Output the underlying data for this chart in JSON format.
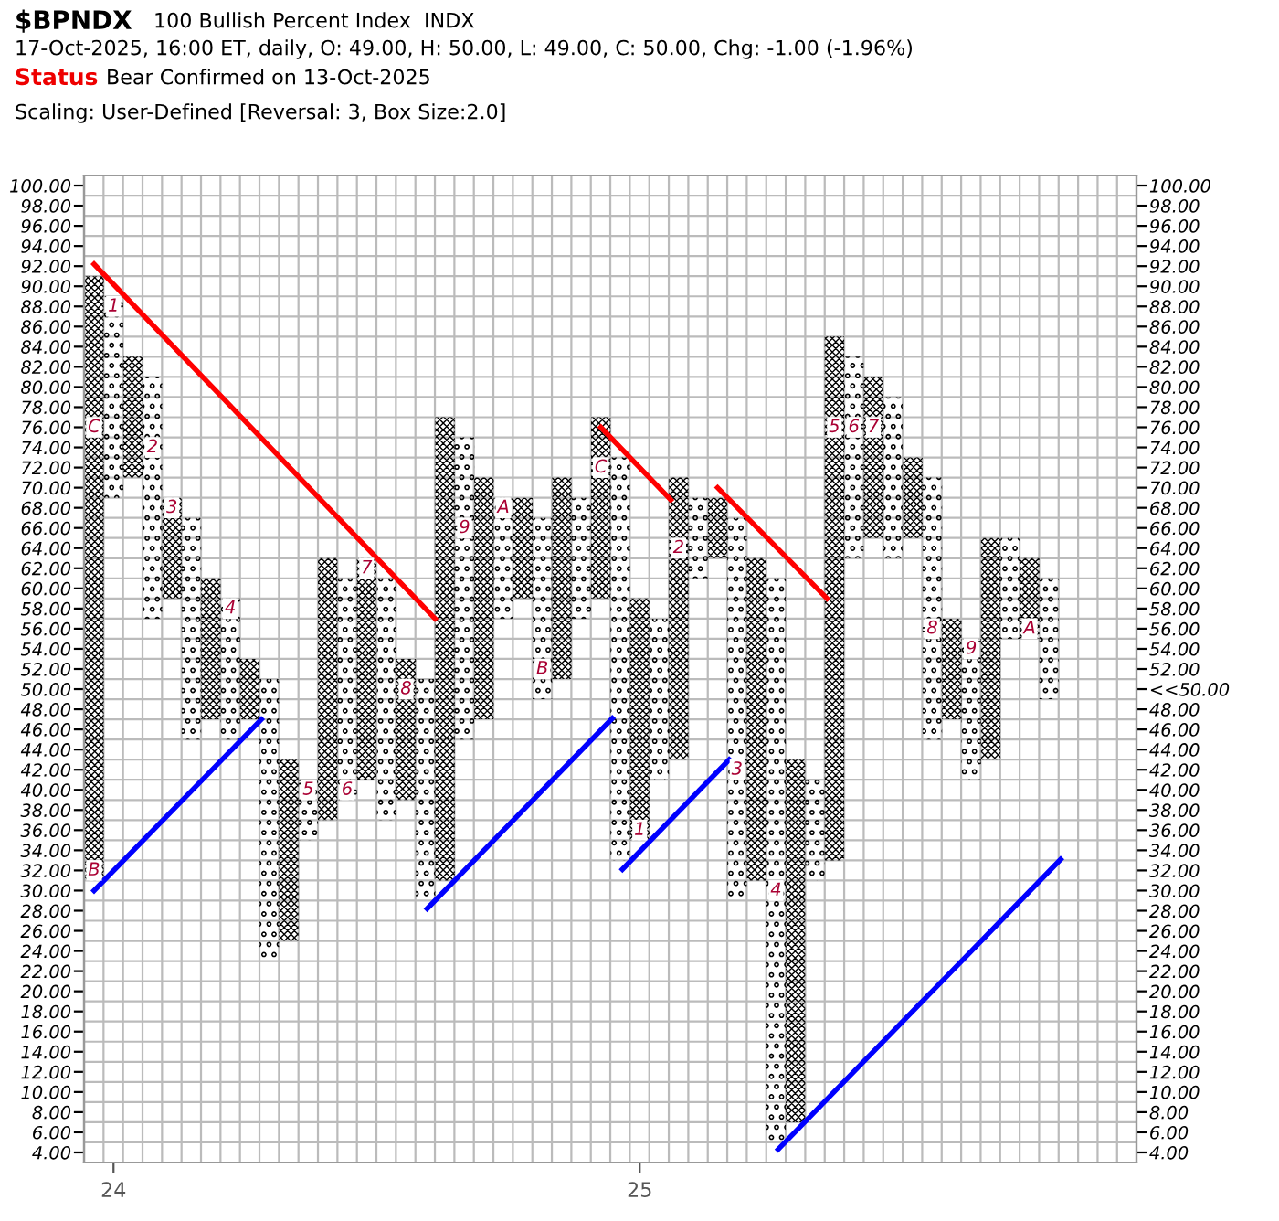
{
  "chart_data": {
    "type": "bar",
    "title": "$BPNDX",
    "subtitle": "100 Bullish Percent Index  INDX",
    "annotations": [
      "17-Oct-2025, 16:00 ET, daily, O: 49.00, H: 50.00, L: 49.00, C: 50.00, Chg: -1.00 (-1.96%)",
      "Status",
      "Bear Confirmed on 13-Oct-2025",
      "Scaling: User-Defined [Reversal: 3, Box Size:2.0]",
      {
        "text": "B",
        "x": 23.963,
        "y": 32
      },
      {
        "text": "C",
        "x": 23.963,
        "y": 76
      },
      {
        "text": "1",
        "x": 24.0,
        "y": 88
      },
      {
        "text": "2",
        "x": 24.074,
        "y": 74
      },
      {
        "text": "3",
        "x": 24.111,
        "y": 68
      },
      {
        "text": "4",
        "x": 24.222,
        "y": 58
      },
      {
        "text": "5",
        "x": 24.37,
        "y": 40
      },
      {
        "text": "6",
        "x": 24.444,
        "y": 40
      },
      {
        "text": "7",
        "x": 24.481,
        "y": 62
      },
      {
        "text": "8",
        "x": 24.556,
        "y": 50
      },
      {
        "text": "9",
        "x": 24.667,
        "y": 66
      },
      {
        "text": "A",
        "x": 24.741,
        "y": 68
      },
      {
        "text": "B",
        "x": 24.815,
        "y": 52
      },
      {
        "text": "C",
        "x": 24.926,
        "y": 72
      },
      {
        "text": "1",
        "x": 25.0,
        "y": 36
      },
      {
        "text": "2",
        "x": 25.074,
        "y": 64
      },
      {
        "text": "3",
        "x": 25.185,
        "y": 42
      },
      {
        "text": "4",
        "x": 25.259,
        "y": 30
      },
      {
        "text": "5",
        "x": 25.37,
        "y": 76
      },
      {
        "text": "6",
        "x": 25.407,
        "y": 76
      },
      {
        "text": "7",
        "x": 25.444,
        "y": 76
      },
      {
        "text": "8",
        "x": 25.556,
        "y": 56
      },
      {
        "text": "9",
        "x": 25.63,
        "y": 54
      },
      {
        "text": "A",
        "x": 25.741,
        "y": 56
      }
    ],
    "x": [
      23.963,
      24.0,
      24.037,
      24.074,
      24.111,
      24.148,
      24.185,
      24.222,
      24.259,
      24.296,
      24.333,
      24.37,
      24.407,
      24.444,
      24.481,
      24.519,
      24.556,
      24.593,
      24.63,
      24.667,
      24.704,
      24.741,
      24.778,
      24.815,
      24.852,
      24.889,
      24.926,
      24.963,
      25.0,
      25.037,
      25.074,
      25.111,
      25.148,
      25.185,
      25.222,
      25.259,
      25.296,
      25.333,
      25.37,
      25.407,
      25.444,
      25.481,
      25.519,
      25.556,
      25.593,
      25.63,
      25.667,
      25.704,
      25.741,
      25.778
    ],
    "series": [
      {
        "color": "#000000",
        "base": [
          31,
          89,
          71,
          81,
          59,
          67,
          47,
          59,
          47,
          51,
          25,
          41,
          37,
          61,
          41,
          61,
          39,
          51,
          31,
          75,
          47,
          69,
          59,
          67,
          51,
          69,
          59,
          73,
          35,
          57,
          43,
          69,
          63,
          67,
          31,
          61,
          7,
          41,
          33,
          83,
          65,
          79,
          65,
          71,
          47,
          55,
          43,
          65,
          55,
          61
        ],
        "values": [
          60,
          -20,
          12,
          -24,
          10,
          -22,
          14,
          -14,
          6,
          -28,
          18,
          -6,
          26,
          -22,
          22,
          -24,
          14,
          -22,
          46,
          -30,
          24,
          -12,
          10,
          -18,
          20,
          -12,
          18,
          -40,
          24,
          -16,
          28,
          -8,
          6,
          -38,
          32,
          -56,
          36,
          -10,
          52,
          -20,
          16,
          -16,
          8,
          -26,
          10,
          -14,
          22,
          -10,
          8,
          -12
        ]
      },
      {
        "type": "line",
        "color": "#ff0000",
        "x": [
          23.963,
          24.611
        ],
        "values": [
          92.2,
          57
        ]
      },
      {
        "type": "line",
        "color": "#ff0000",
        "x": [
          24.926,
          25.059
        ],
        "values": [
          76,
          68.8
        ]
      },
      {
        "type": "line",
        "color": "#ff0000",
        "x": [
          25.148,
          25.356
        ],
        "values": [
          70,
          59
        ]
      },
      {
        "type": "line",
        "color": "#0000ff",
        "x": [
          23.963,
          24.281
        ],
        "values": [
          30,
          47
        ]
      },
      {
        "type": "line",
        "color": "#0000ff",
        "x": [
          24.596,
          24.948
        ],
        "values": [
          28.2,
          47.1
        ]
      },
      {
        "type": "line",
        "color": "#0000ff",
        "x": [
          24.967,
          25.17
        ],
        "values": [
          32.1,
          43
        ]
      },
      {
        "type": "line",
        "color": "#0000ff",
        "x": [
          25.263,
          25.8
        ],
        "values": [
          4.3,
          33.1
        ]
      }
    ],
    "xlim": [
      23.944,
      25.944
    ],
    "xticks": [
      24,
      25
    ],
    "ylim": [
      3,
      101
    ],
    "yticks": [
      {
        "value": 4,
        "label": "4.00"
      },
      {
        "value": 6,
        "label": "6.00"
      },
      {
        "value": 8,
        "label": "8.00"
      },
      {
        "value": 10,
        "label": "10.00"
      },
      {
        "value": 12,
        "label": "12.00"
      },
      {
        "value": 14,
        "label": "14.00"
      },
      {
        "value": 16,
        "label": "16.00"
      },
      {
        "value": 18,
        "label": "18.00"
      },
      {
        "value": 20,
        "label": "20.00"
      },
      {
        "value": 22,
        "label": "22.00"
      },
      {
        "value": 24,
        "label": "24.00"
      },
      {
        "value": 26,
        "label": "26.00"
      },
      {
        "value": 28,
        "label": "28.00"
      },
      {
        "value": 30,
        "label": "30.00"
      },
      {
        "value": 32,
        "label": "32.00"
      },
      {
        "value": 34,
        "label": "34.00"
      },
      {
        "value": 36,
        "label": "36.00"
      },
      {
        "value": 38,
        "label": "38.00"
      },
      {
        "value": 40,
        "label": "40.00"
      },
      {
        "value": 42,
        "label": "42.00"
      },
      {
        "value": 44,
        "label": "44.00"
      },
      {
        "value": 46,
        "label": "46.00"
      },
      {
        "value": 48,
        "label": "48.00"
      },
      {
        "value": 50,
        "label": "50.00"
      },
      {
        "value": 52,
        "label": "52.00"
      },
      {
        "value": 54,
        "label": "54.00"
      },
      {
        "value": 56,
        "label": "56.00"
      },
      {
        "value": 58,
        "label": "58.00"
      },
      {
        "value": 60,
        "label": "60.00"
      },
      {
        "value": 62,
        "label": "62.00"
      },
      {
        "value": 64,
        "label": "64.00"
      },
      {
        "value": 66,
        "label": "66.00"
      },
      {
        "value": 68,
        "label": "68.00"
      },
      {
        "value": 70,
        "label": "70.00"
      },
      {
        "value": 72,
        "label": "72.00"
      },
      {
        "value": 74,
        "label": "74.00"
      },
      {
        "value": 76,
        "label": "76.00"
      },
      {
        "value": 78,
        "label": "78.00"
      },
      {
        "value": 80,
        "label": "80.00"
      },
      {
        "value": 82,
        "label": "82.00"
      },
      {
        "value": 84,
        "label": "84.00"
      },
      {
        "value": 86,
        "label": "86.00"
      },
      {
        "value": 88,
        "label": "88.00"
      },
      {
        "value": 90,
        "label": "90.00"
      },
      {
        "value": 92,
        "label": "92.00"
      },
      {
        "value": 94,
        "label": "94.00"
      },
      {
        "value": 96,
        "label": "96.00"
      },
      {
        "value": 98,
        "label": "98.00"
      },
      {
        "value": 100,
        "label": "100.00"
      }
    ],
    "y2lim": [
      3,
      101
    ],
    "y2ticks": [
      {
        "value": 4,
        "label": "4.00"
      },
      {
        "value": 6,
        "label": "6.00"
      },
      {
        "value": 8,
        "label": "8.00"
      },
      {
        "value": 10,
        "label": "10.00"
      },
      {
        "value": 12,
        "label": "12.00"
      },
      {
        "value": 14,
        "label": "14.00"
      },
      {
        "value": 16,
        "label": "16.00"
      },
      {
        "value": 18,
        "label": "18.00"
      },
      {
        "value": 20,
        "label": "20.00"
      },
      {
        "value": 22,
        "label": "22.00"
      },
      {
        "value": 24,
        "label": "24.00"
      },
      {
        "value": 26,
        "label": "26.00"
      },
      {
        "value": 28,
        "label": "28.00"
      },
      {
        "value": 30,
        "label": "30.00"
      },
      {
        "value": 32,
        "label": "32.00"
      },
      {
        "value": 34,
        "label": "34.00"
      },
      {
        "value": 36,
        "label": "36.00"
      },
      {
        "value": 38,
        "label": "38.00"
      },
      {
        "value": 40,
        "label": "40.00"
      },
      {
        "value": 42,
        "label": "42.00"
      },
      {
        "value": 44,
        "label": "44.00"
      },
      {
        "value": 46,
        "label": "46.00"
      },
      {
        "value": 48,
        "label": "48.00"
      },
      {
        "value": 50,
        "label": "<<50.00"
      },
      {
        "value": 52,
        "label": "52.00"
      },
      {
        "value": 54,
        "label": "54.00"
      },
      {
        "value": 56,
        "label": "56.00"
      },
      {
        "value": 58,
        "label": "58.00"
      },
      {
        "value": 60,
        "label": "60.00"
      },
      {
        "value": 62,
        "label": "62.00"
      },
      {
        "value": 64,
        "label": "64.00"
      },
      {
        "value": 66,
        "label": "66.00"
      },
      {
        "value": 68,
        "label": "68.00"
      },
      {
        "value": 70,
        "label": "70.00"
      },
      {
        "value": 72,
        "label": "72.00"
      },
      {
        "value": 74,
        "label": "74.00"
      },
      {
        "value": 76,
        "label": "76.00"
      },
      {
        "value": 78,
        "label": "78.00"
      },
      {
        "value": 80,
        "label": "80.00"
      },
      {
        "value": 82,
        "label": "82.00"
      },
      {
        "value": 84,
        "label": "84.00"
      },
      {
        "value": 86,
        "label": "86.00"
      },
      {
        "value": 88,
        "label": "88.00"
      },
      {
        "value": 90,
        "label": "90.00"
      },
      {
        "value": 92,
        "label": "92.00"
      },
      {
        "value": 94,
        "label": "94.00"
      },
      {
        "value": 96,
        "label": "96.00"
      },
      {
        "value": 98,
        "label": "98.00"
      },
      {
        "value": 100,
        "label": "100.00"
      }
    ],
    "grid": true,
    "legend": false
  }
}
